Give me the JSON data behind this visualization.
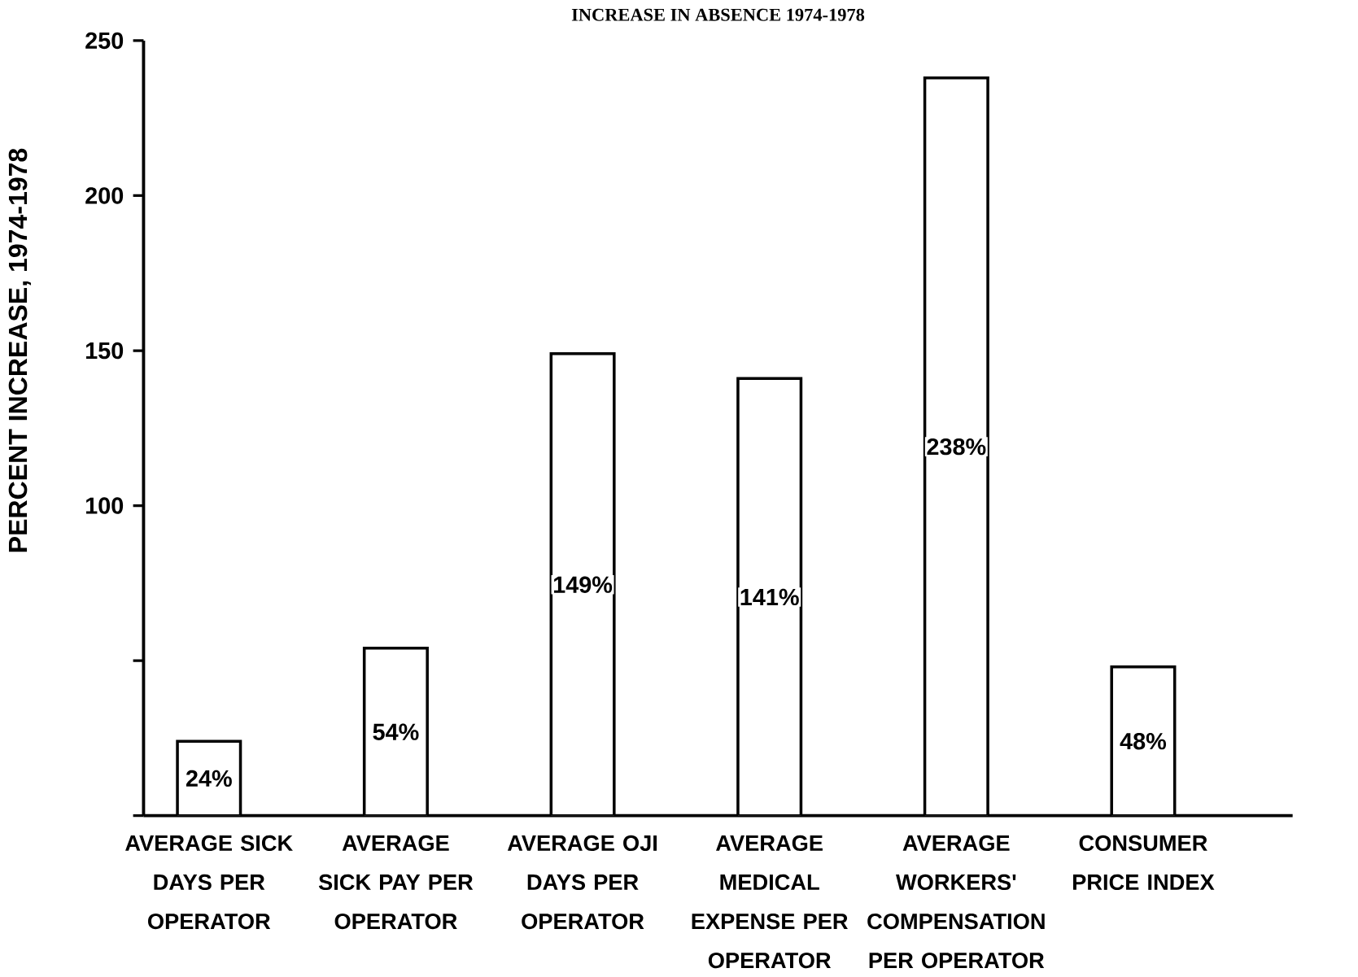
{
  "chart_data": {
    "type": "bar",
    "title": "INCREASE IN ABSENCE 1974-1978",
    "ylabel": "PERCENT INCREASE, 1974-1978",
    "categories": [
      "AVERAGE SICK DAYS PER OPERATOR",
      "AVERAGE SICK PAY PER OPERATOR",
      "AVERAGE OJI DAYS PER OPERATOR",
      "AVERAGE MEDICAL EXPENSE PER OPERATOR",
      "AVERAGE WORKERS' COMPENSATION PER OPERATOR",
      "CONSUMER PRICE INDEX"
    ],
    "values": [
      24,
      54,
      149,
      141,
      238,
      48
    ],
    "value_labels": [
      "24%",
      "54%",
      "149%",
      "141%",
      "238%",
      "48%"
    ],
    "color": "#ffffff",
    "ylim": [
      0,
      250
    ],
    "yticks": [
      {
        "value": 0,
        "label": null
      },
      {
        "value": 50,
        "label": null
      },
      100,
      150,
      200,
      250
    ],
    "grid": false,
    "legend": false
  }
}
